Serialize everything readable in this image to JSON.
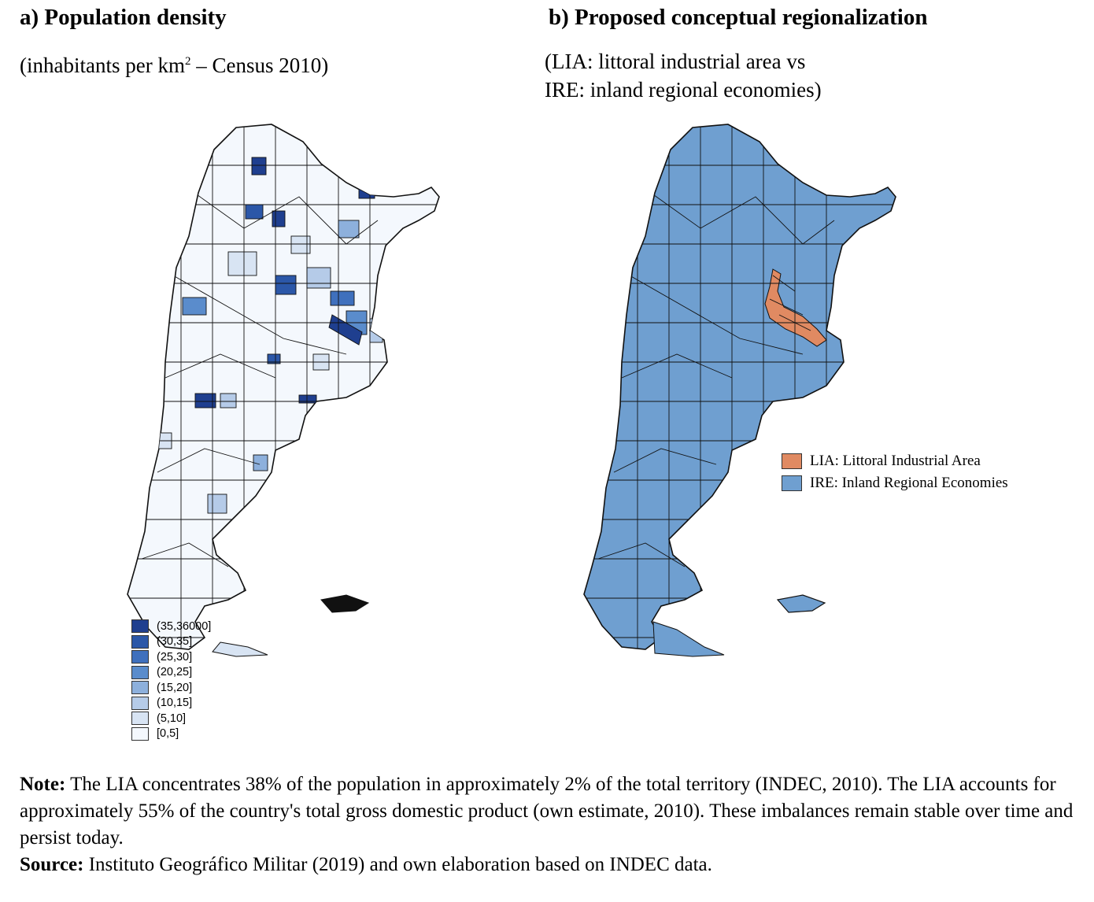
{
  "panel_a": {
    "title": "a) Population density",
    "subtitle_pre": "(inhabitants per km",
    "subtitle_sup": "2",
    "subtitle_post": " – Census 2010)",
    "legend": [
      {
        "label": "(35,36000]",
        "color": "#1f3f8f"
      },
      {
        "label": "(30,35]",
        "color": "#2b57a8"
      },
      {
        "label": "(25,30]",
        "color": "#3f70bd"
      },
      {
        "label": "(20,25]",
        "color": "#5a8ccc"
      },
      {
        "label": "(15,20]",
        "color": "#8db0dc"
      },
      {
        "label": "(10,15]",
        "color": "#b5cbe8"
      },
      {
        "label": "(5,10]",
        "color": "#d8e4f3"
      },
      {
        "label": "[0,5]",
        "color": "#f4f8fd"
      }
    ]
  },
  "panel_b": {
    "title": "b) Proposed conceptual regionalization",
    "subtitle_line1": "(LIA: littoral industrial area vs",
    "subtitle_line2": "IRE: inland regional economies)",
    "legend": [
      {
        "label": "LIA: Littoral Industrial Area",
        "color": "#e08a62"
      },
      {
        "label": "IRE: Inland Regional Economies",
        "color": "#6f9fd0"
      }
    ]
  },
  "note": {
    "note_label": "Note:",
    "note_text": " The LIA concentrates 38% of the population in approximately 2% of the total territory (INDEC, 2010). The LIA accounts for approximately 55% of the country's total gross domestic product (own estimate, 2010). These imbalances remain stable over time and persist today.",
    "source_label": "Source:",
    "source_text": " Instituto Geográfico Militar (2019) and own elaboration based on INDEC data."
  }
}
